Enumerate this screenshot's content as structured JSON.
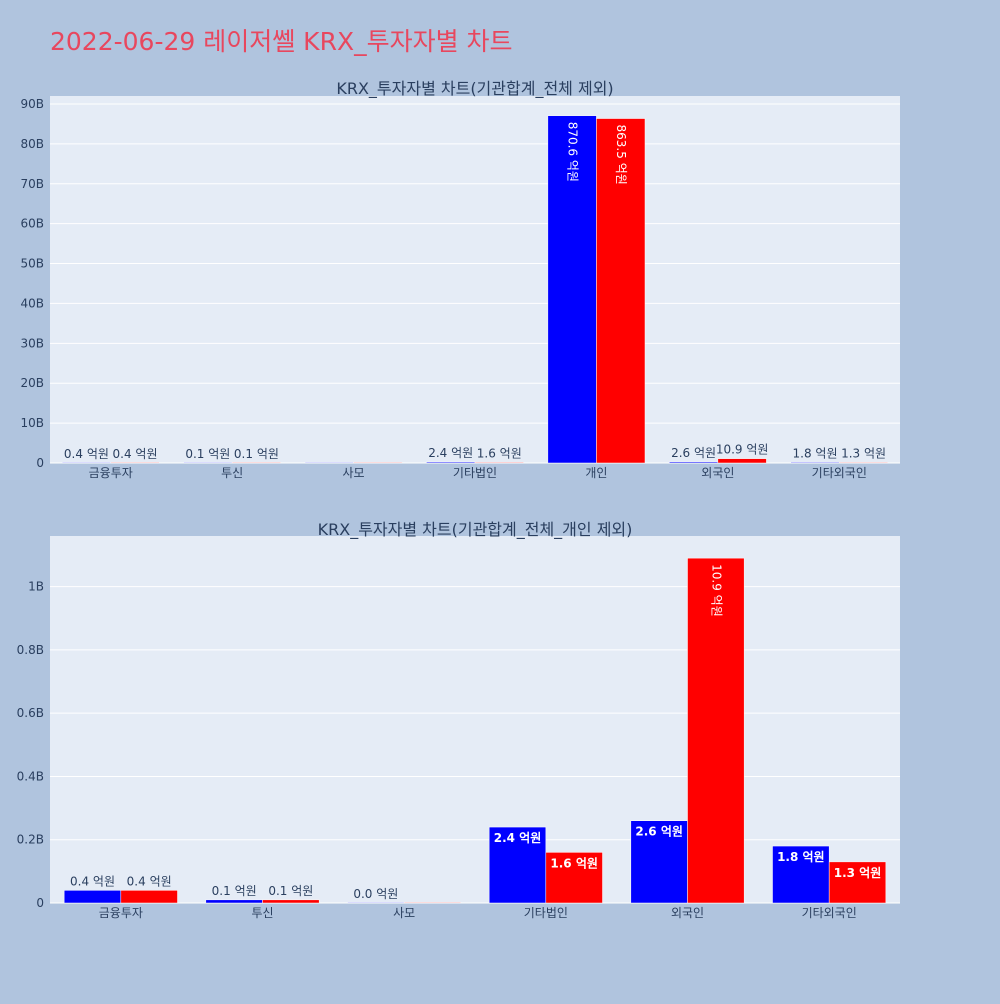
{
  "page": {
    "title": "2022-06-29 레이저쎌 KRX_투자자별 차트",
    "title_color": "#e8475e",
    "background": "#b0c4de",
    "plot_background": "#e5ecf6"
  },
  "chart_data": [
    {
      "type": "bar",
      "title": "KRX_투자자별 차트(기관합계_전체 제외)",
      "categories": [
        "금융투자",
        "투신",
        "사모",
        "기타법인",
        "개인",
        "외국인",
        "기타외국인"
      ],
      "ylim": [
        0,
        92000000000
      ],
      "yticks": [
        0,
        10000000000,
        20000000000,
        30000000000,
        40000000000,
        50000000000,
        60000000000,
        70000000000,
        80000000000,
        90000000000
      ],
      "ytick_labels": [
        "0",
        "10B",
        "20B",
        "30B",
        "40B",
        "50B",
        "60B",
        "70B",
        "80B",
        "90B"
      ],
      "grid": true,
      "series": [
        {
          "color": "#0000ff",
          "values": [
            40000000,
            10000000,
            0,
            240000000,
            87060000000,
            260000000,
            180000000
          ],
          "labels": [
            "0.4 억원",
            "0.1 억원",
            "",
            "2.4 억원",
            "870.6 억원",
            "2.6 억원",
            "1.8 억원"
          ]
        },
        {
          "color": "#ff0000",
          "values": [
            40000000,
            10000000,
            0,
            160000000,
            86350000000,
            1090000000,
            130000000
          ],
          "labels": [
            "0.4 억원",
            "0.1 억원",
            "",
            "1.6 억원",
            "863.5 억원",
            "10.9 억원",
            "1.3 억원"
          ]
        }
      ]
    },
    {
      "type": "bar",
      "title": "KRX_투자자별 차트(기관합계_전체_개인 제외)",
      "categories": [
        "금융투자",
        "투신",
        "사모",
        "기타법인",
        "외국인",
        "기타외국인"
      ],
      "ylim": [
        0,
        1160000000
      ],
      "yticks": [
        0,
        200000000,
        400000000,
        600000000,
        800000000,
        1000000000
      ],
      "ytick_labels": [
        "0",
        "0.2B",
        "0.4B",
        "0.6B",
        "0.8B",
        "1B"
      ],
      "grid": true,
      "series": [
        {
          "color": "#0000ff",
          "values": [
            40000000,
            10000000,
            0,
            240000000,
            260000000,
            180000000
          ],
          "labels": [
            "0.4 억원",
            "0.1 억원",
            "0.0 억원",
            "2.4 억원",
            "2.6 억원",
            "1.8 억원"
          ]
        },
        {
          "color": "#ff0000",
          "values": [
            40000000,
            10000000,
            0,
            160000000,
            1090000000,
            130000000
          ],
          "labels": [
            "0.4 억원",
            "0.1 억원",
            "",
            "1.6 억원",
            "10.9 억원",
            "1.3 억원"
          ]
        }
      ]
    }
  ]
}
